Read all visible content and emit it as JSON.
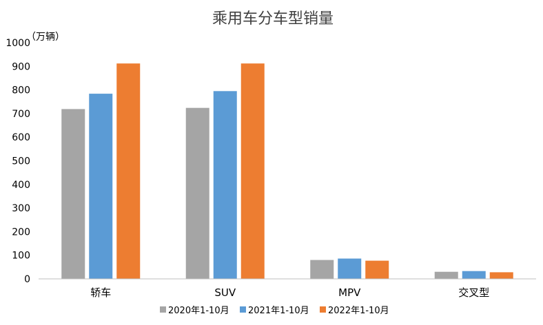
{
  "chart_data": {
    "type": "bar",
    "title": "乘用车分车型销量",
    "ylabel": "（万辆）",
    "xlabel": "",
    "ylim": [
      0,
      1000
    ],
    "yticks": [
      0,
      100,
      200,
      300,
      400,
      500,
      600,
      700,
      800,
      900,
      1000
    ],
    "categories": [
      "轿车",
      "SUV",
      "MPV",
      "交叉型"
    ],
    "series": [
      {
        "name": "2020年1-10月",
        "color": "#a5a5a5",
        "values": [
          719,
          724,
          80,
          30
        ]
      },
      {
        "name": "2021年1-10月",
        "color": "#5b9bd5",
        "values": [
          784,
          795,
          86,
          33
        ]
      },
      {
        "name": "2022年1-10月",
        "color": "#ed7d31",
        "values": [
          912,
          912,
          77,
          28
        ]
      }
    ],
    "grid": false,
    "legend": "bottom"
  }
}
